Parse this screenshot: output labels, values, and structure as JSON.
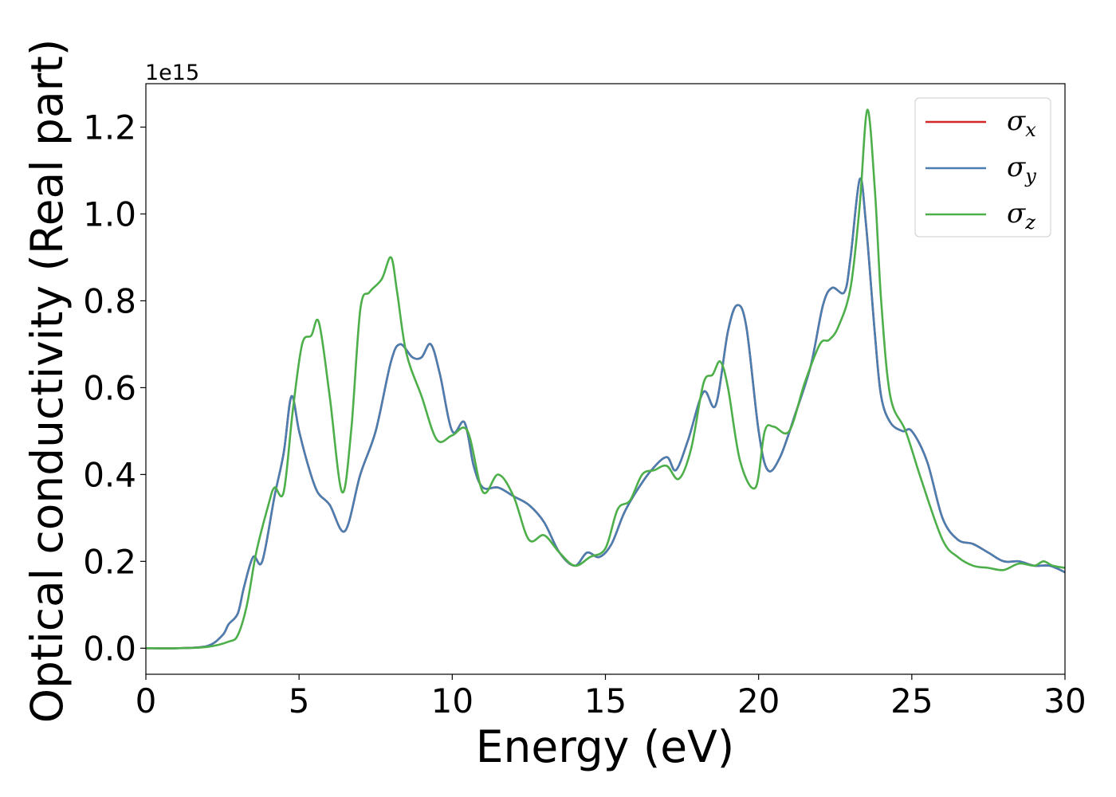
{
  "chart_data": {
    "type": "line",
    "xlabel": "Energy (eV)",
    "ylabel": "Optical conductivity (Real part)",
    "y_offset_label": "1e15",
    "xlim": [
      0,
      30
    ],
    "ylim": [
      -0.06,
      1.3
    ],
    "x_ticks": [
      0,
      5,
      10,
      15,
      20,
      25,
      30
    ],
    "x_tick_labels": [
      "0",
      "5",
      "10",
      "15",
      "20",
      "25",
      "30"
    ],
    "y_ticks": [
      0.0,
      0.2,
      0.4,
      0.6,
      0.8,
      1.0,
      1.2
    ],
    "y_tick_labels": [
      "0.0",
      "0.2",
      "0.4",
      "0.6",
      "0.8",
      "1.0",
      "1.2"
    ],
    "grid": false,
    "legend_position": "top-right",
    "series": [
      {
        "name": "σx",
        "symbol": "σ",
        "subscript": "x",
        "color": "#d62728",
        "x": [
          0,
          1,
          2,
          2.5,
          2.7,
          3.0,
          3.2,
          3.5,
          3.8,
          4.2,
          4.5,
          4.75,
          5.0,
          5.3,
          5.6,
          6.0,
          6.5,
          7.0,
          7.5,
          8.0,
          8.3,
          8.7,
          9.0,
          9.3,
          9.6,
          10.0,
          10.4,
          10.7,
          11.0,
          11.5,
          12.0,
          12.5,
          13.0,
          13.5,
          14.0,
          14.4,
          14.8,
          15.2,
          15.6,
          16.0,
          16.5,
          17.0,
          17.3,
          17.7,
          18.2,
          18.6,
          19.0,
          19.3,
          19.6,
          20.0,
          20.3,
          20.7,
          21.2,
          21.7,
          22.1,
          22.4,
          22.8,
          23.0,
          23.3,
          23.5,
          23.8,
          24.0,
          24.3,
          24.7,
          25.0,
          25.5,
          26.0,
          26.5,
          27.0,
          27.5,
          28.0,
          28.5,
          29.0,
          29.5,
          30.0
        ],
        "values": [
          0.0,
          0.0,
          0.005,
          0.03,
          0.055,
          0.08,
          0.14,
          0.21,
          0.2,
          0.35,
          0.45,
          0.58,
          0.5,
          0.42,
          0.36,
          0.33,
          0.27,
          0.4,
          0.5,
          0.66,
          0.7,
          0.67,
          0.67,
          0.7,
          0.63,
          0.5,
          0.52,
          0.42,
          0.37,
          0.37,
          0.35,
          0.33,
          0.29,
          0.22,
          0.19,
          0.22,
          0.21,
          0.24,
          0.31,
          0.36,
          0.41,
          0.44,
          0.41,
          0.48,
          0.59,
          0.56,
          0.73,
          0.79,
          0.74,
          0.5,
          0.41,
          0.44,
          0.54,
          0.65,
          0.79,
          0.83,
          0.82,
          0.9,
          1.08,
          0.98,
          0.72,
          0.58,
          0.52,
          0.5,
          0.5,
          0.43,
          0.3,
          0.25,
          0.24,
          0.22,
          0.2,
          0.2,
          0.19,
          0.19,
          0.175
        ]
      },
      {
        "name": "σy",
        "symbol": "σ",
        "subscript": "y",
        "color": "#4a7eb0",
        "x": [
          0,
          1,
          2,
          2.5,
          2.7,
          3.0,
          3.2,
          3.5,
          3.8,
          4.2,
          4.5,
          4.75,
          5.0,
          5.3,
          5.6,
          6.0,
          6.5,
          7.0,
          7.5,
          8.0,
          8.3,
          8.7,
          9.0,
          9.3,
          9.6,
          10.0,
          10.4,
          10.7,
          11.0,
          11.5,
          12.0,
          12.5,
          13.0,
          13.5,
          14.0,
          14.4,
          14.8,
          15.2,
          15.6,
          16.0,
          16.5,
          17.0,
          17.3,
          17.7,
          18.2,
          18.6,
          19.0,
          19.3,
          19.6,
          20.0,
          20.3,
          20.7,
          21.2,
          21.7,
          22.1,
          22.4,
          22.8,
          23.0,
          23.3,
          23.5,
          23.8,
          24.0,
          24.3,
          24.7,
          25.0,
          25.5,
          26.0,
          26.5,
          27.0,
          27.5,
          28.0,
          28.5,
          29.0,
          29.5,
          30.0
        ],
        "values": [
          0.0,
          0.0,
          0.005,
          0.03,
          0.055,
          0.08,
          0.14,
          0.21,
          0.2,
          0.35,
          0.45,
          0.58,
          0.5,
          0.42,
          0.36,
          0.33,
          0.27,
          0.4,
          0.5,
          0.66,
          0.7,
          0.67,
          0.67,
          0.7,
          0.63,
          0.5,
          0.52,
          0.42,
          0.37,
          0.37,
          0.35,
          0.33,
          0.29,
          0.22,
          0.19,
          0.22,
          0.21,
          0.24,
          0.31,
          0.36,
          0.41,
          0.44,
          0.41,
          0.48,
          0.59,
          0.56,
          0.73,
          0.79,
          0.74,
          0.5,
          0.41,
          0.44,
          0.54,
          0.65,
          0.79,
          0.83,
          0.82,
          0.9,
          1.08,
          0.98,
          0.72,
          0.58,
          0.52,
          0.5,
          0.5,
          0.43,
          0.3,
          0.25,
          0.24,
          0.22,
          0.2,
          0.2,
          0.19,
          0.19,
          0.175
        ]
      },
      {
        "name": "σz",
        "symbol": "σ",
        "subscript": "z",
        "color": "#4daf4a",
        "x": [
          0,
          1,
          2,
          2.7,
          3.0,
          3.3,
          3.6,
          4.0,
          4.2,
          4.5,
          4.8,
          5.1,
          5.4,
          5.65,
          6.0,
          6.4,
          6.7,
          7.0,
          7.3,
          7.7,
          8.0,
          8.2,
          8.5,
          9.0,
          9.5,
          10.0,
          10.5,
          11.0,
          11.5,
          12.0,
          12.5,
          13.0,
          13.5,
          14.0,
          14.5,
          15.0,
          15.4,
          15.8,
          16.2,
          16.6,
          17.0,
          17.4,
          17.8,
          18.2,
          18.5,
          18.75,
          19.0,
          19.4,
          19.9,
          20.2,
          20.5,
          21.0,
          21.5,
          22.0,
          22.3,
          22.6,
          23.0,
          23.3,
          23.55,
          23.8,
          24.0,
          24.3,
          24.8,
          25.3,
          26.0,
          26.5,
          27.0,
          27.5,
          28.0,
          28.5,
          29.0,
          29.3,
          29.6,
          30.0
        ],
        "values": [
          0.0,
          0.0,
          0.003,
          0.015,
          0.03,
          0.1,
          0.22,
          0.33,
          0.37,
          0.36,
          0.55,
          0.7,
          0.72,
          0.75,
          0.58,
          0.36,
          0.5,
          0.78,
          0.82,
          0.85,
          0.9,
          0.82,
          0.68,
          0.58,
          0.48,
          0.49,
          0.5,
          0.36,
          0.4,
          0.35,
          0.25,
          0.26,
          0.22,
          0.19,
          0.21,
          0.23,
          0.32,
          0.34,
          0.4,
          0.41,
          0.42,
          0.39,
          0.46,
          0.61,
          0.63,
          0.66,
          0.6,
          0.43,
          0.37,
          0.5,
          0.51,
          0.5,
          0.61,
          0.7,
          0.71,
          0.74,
          0.83,
          1.02,
          1.24,
          1.05,
          0.8,
          0.58,
          0.5,
          0.39,
          0.25,
          0.21,
          0.19,
          0.185,
          0.18,
          0.195,
          0.19,
          0.2,
          0.19,
          0.185
        ]
      }
    ]
  }
}
